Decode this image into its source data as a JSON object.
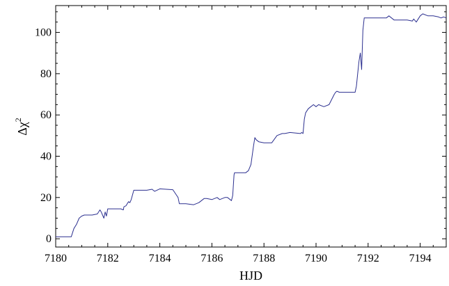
{
  "chart_data": {
    "type": "line",
    "title": "",
    "xlabel": "HJD",
    "ylabel_main": "Δχ",
    "ylabel_sup": "2",
    "xlim": [
      7180,
      7195
    ],
    "ylim": [
      -4,
      113
    ],
    "xticks": [
      7180,
      7182,
      7184,
      7186,
      7188,
      7190,
      7192,
      7194
    ],
    "yticks": [
      0,
      20,
      40,
      60,
      80,
      100
    ],
    "xtick_labels": [
      "7180",
      "7182",
      "7184",
      "7186",
      "7188",
      "7190",
      "7192",
      "7194"
    ],
    "ytick_labels": [
      "0",
      "20",
      "40",
      "60",
      "80",
      "100"
    ],
    "grid": false,
    "line_color": "#2b2f8f",
    "series": [
      {
        "x": [
          7180.0,
          7180.5,
          7180.6,
          7180.65,
          7180.7,
          7180.8,
          7180.9,
          7181.0,
          7181.1,
          7181.2,
          7181.4,
          7181.6,
          7181.7,
          7181.75,
          7181.85,
          7181.9,
          7181.95,
          7182.0,
          7182.5,
          7182.6,
          7182.62,
          7182.7,
          7182.75,
          7182.8,
          7182.85,
          7182.9,
          7183.0,
          7183.5,
          7183.7,
          7183.8,
          7184.0,
          7184.5,
          7184.7,
          7184.75,
          7184.8,
          7185.0,
          7185.3,
          7185.5,
          7185.7,
          7185.8,
          7186.0,
          7186.2,
          7186.3,
          7186.5,
          7186.6,
          7186.7,
          7186.75,
          7186.8,
          7186.85,
          7186.87,
          7186.9,
          7187.0,
          7187.3,
          7187.4,
          7187.5,
          7187.6,
          7187.65,
          7187.7,
          7187.8,
          7188.0,
          7188.3,
          7188.5,
          7188.7,
          7188.8,
          7189.0,
          7189.4,
          7189.45,
          7189.5,
          7189.55,
          7189.6,
          7189.7,
          7189.8,
          7189.9,
          7190.0,
          7190.1,
          7190.3,
          7190.5,
          7190.7,
          7190.75,
          7190.8,
          7190.9,
          7191.0,
          7191.5,
          7191.55,
          7191.6,
          7191.65,
          7191.7,
          7191.75,
          7191.8,
          7191.85,
          7192.0,
          7192.5,
          7192.7,
          7192.8,
          7192.85,
          7193.0,
          7193.2,
          7193.5,
          7193.7,
          7193.75,
          7193.85,
          7194.0,
          7194.1,
          7194.3,
          7194.5,
          7194.7,
          7194.8,
          7194.9,
          7195.0
        ],
        "y": [
          1,
          1,
          1,
          3,
          5,
          7,
          10,
          11,
          11.5,
          11.5,
          11.5,
          12,
          14,
          13,
          10,
          13,
          11,
          14.5,
          14.5,
          14,
          15.5,
          16,
          17,
          18,
          17.5,
          19,
          23.5,
          23.5,
          24,
          23,
          24.2,
          23.8,
          20,
          17,
          17,
          17,
          16.5,
          17.5,
          19.5,
          19.5,
          19,
          20,
          19,
          20,
          20,
          19,
          18.5,
          21,
          31,
          32,
          32,
          32,
          32,
          33,
          36,
          45,
          49,
          48,
          47,
          46.5,
          46.5,
          50,
          51,
          51,
          51.5,
          51,
          51.5,
          51,
          58,
          61,
          63,
          64,
          65,
          64,
          65,
          64,
          65,
          70,
          71,
          71.5,
          71,
          71,
          71,
          74,
          80,
          86,
          90,
          82,
          101,
          107,
          107,
          107,
          107,
          108,
          107.5,
          106,
          106,
          106,
          105.5,
          106.5,
          105,
          108,
          109,
          108,
          108,
          107.5,
          107,
          107.5,
          107
        ]
      }
    ]
  }
}
